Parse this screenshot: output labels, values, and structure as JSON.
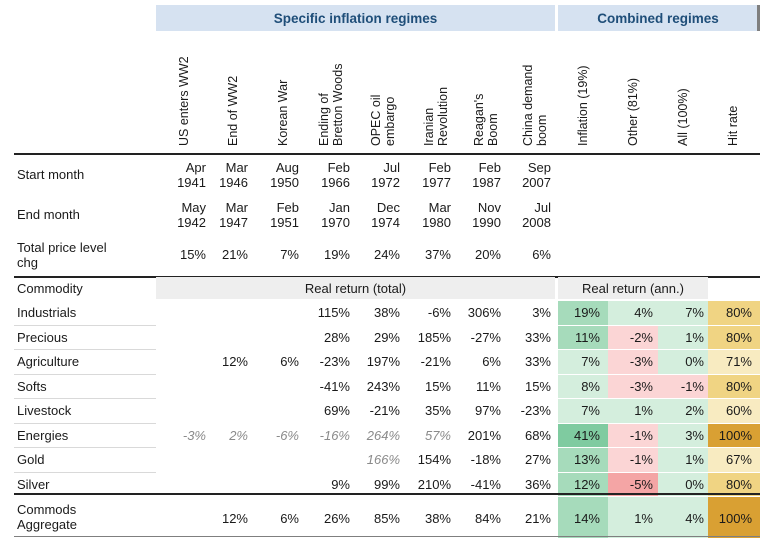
{
  "headers": {
    "specific": "Specific inflation regimes",
    "combined": "Combined regimes",
    "real_total": "Real return (total)",
    "real_ann": "Real return (ann.)",
    "commodity": "Commodity"
  },
  "columns": [
    {
      "id": "c1",
      "label": "US enters WW2"
    },
    {
      "id": "c2",
      "label": "End of WW2"
    },
    {
      "id": "c3",
      "label": "Korean War"
    },
    {
      "id": "c4",
      "label": "Ending of\nBretton Woods"
    },
    {
      "id": "c5",
      "label": "OPEC oil\nembargo"
    },
    {
      "id": "c6",
      "label": "Iranian\nRevolution"
    },
    {
      "id": "c7",
      "label": "Reagan's\nBoom"
    },
    {
      "id": "c8",
      "label": "China demand\nboom"
    },
    {
      "id": "c9",
      "label": "Inflation (19%)"
    },
    {
      "id": "c10",
      "label": "Other (81%)"
    },
    {
      "id": "c11",
      "label": "All (100%)"
    },
    {
      "id": "c12",
      "label": "Hit rate"
    }
  ],
  "start_month": {
    "label": "Start month",
    "values": [
      "Apr\n1941",
      "Mar\n1946",
      "Aug\n1950",
      "Feb\n1966",
      "Jul\n1972",
      "Feb\n1977",
      "Feb\n1987",
      "Sep\n2007"
    ]
  },
  "end_month": {
    "label": "End month",
    "values": [
      "May\n1942",
      "Mar\n1947",
      "Feb\n1951",
      "Jan\n1970",
      "Dec\n1974",
      "Mar\n1980",
      "Nov\n1990",
      "Jul\n2008"
    ]
  },
  "price_chg": {
    "label": "Total price level\nchg",
    "values": [
      "15%",
      "21%",
      "7%",
      "19%",
      "24%",
      "37%",
      "20%",
      "6%"
    ]
  },
  "rows": [
    {
      "label": "Industrials",
      "values": [
        "",
        "",
        "",
        "115%",
        "38%",
        "-6%",
        "306%",
        "3%"
      ],
      "muted": [],
      "inflation": "19%",
      "other": "4%",
      "all": "7%",
      "hit": "80%"
    },
    {
      "label": "Precious",
      "values": [
        "",
        "",
        "",
        "28%",
        "29%",
        "185%",
        "-27%",
        "33%"
      ],
      "muted": [],
      "inflation": "11%",
      "other": "-2%",
      "all": "1%",
      "hit": "80%"
    },
    {
      "label": "Agriculture",
      "values": [
        "",
        "12%",
        "6%",
        "-23%",
        "197%",
        "-21%",
        "6%",
        "33%"
      ],
      "muted": [],
      "inflation": "7%",
      "other": "-3%",
      "all": "0%",
      "hit": "71%"
    },
    {
      "label": "Softs",
      "values": [
        "",
        "",
        "",
        "-41%",
        "243%",
        "15%",
        "11%",
        "15%"
      ],
      "muted": [],
      "inflation": "8%",
      "other": "-3%",
      "all": "-1%",
      "hit": "80%"
    },
    {
      "label": "Livestock",
      "values": [
        "",
        "",
        "",
        "69%",
        "-21%",
        "35%",
        "97%",
        "-23%"
      ],
      "muted": [],
      "inflation": "7%",
      "other": "1%",
      "all": "2%",
      "hit": "60%"
    },
    {
      "label": "Energies",
      "values": [
        "-3%",
        "2%",
        "-6%",
        "-16%",
        "264%",
        "57%",
        "201%",
        "68%"
      ],
      "muted": [
        0,
        1,
        2,
        3,
        4,
        5
      ],
      "inflation": "41%",
      "other": "-1%",
      "all": "3%",
      "hit": "100%"
    },
    {
      "label": "Gold",
      "values": [
        "",
        "",
        "",
        "",
        "166%",
        "154%",
        "-18%",
        "27%"
      ],
      "muted": [
        4
      ],
      "inflation": "13%",
      "other": "-1%",
      "all": "1%",
      "hit": "67%"
    },
    {
      "label": "Silver",
      "values": [
        "",
        "",
        "",
        "9%",
        "99%",
        "210%",
        "-41%",
        "36%"
      ],
      "muted": [],
      "inflation": "12%",
      "other": "-5%",
      "all": "0%",
      "hit": "80%"
    },
    {
      "label": "Commods\nAggregate",
      "values": [
        "",
        "12%",
        "6%",
        "26%",
        "85%",
        "38%",
        "84%",
        "21%"
      ],
      "muted": [],
      "inflation": "14%",
      "other": "1%",
      "all": "4%",
      "hit": "100%"
    }
  ],
  "colors": {
    "header_bg": "#d6e2f1",
    "header_text": "#1f4e79",
    "green_strong": "#7fcba0",
    "green_mid": "#a6dbbb",
    "green_light": "#d4eedd",
    "red_light": "#fbd5d5",
    "red_mid": "#f4a5a5",
    "hit_light": "#f8ebc1",
    "hit_mid": "#f0d483",
    "hit_strong": "#d9a033",
    "gray_bg": "#eeeeee"
  }
}
